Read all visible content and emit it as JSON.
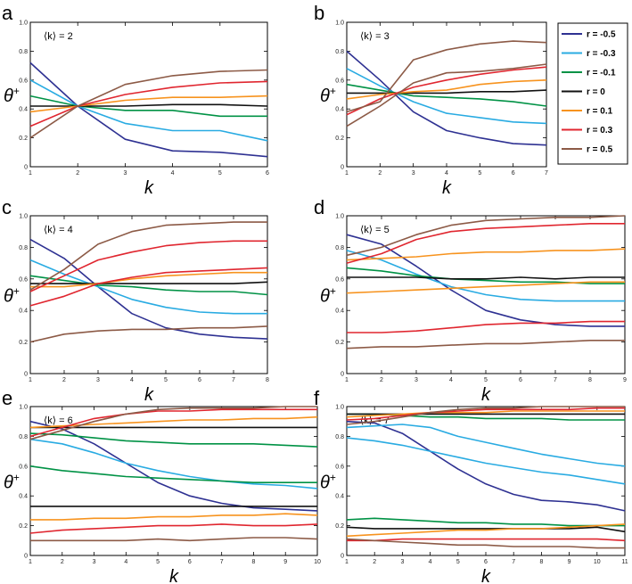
{
  "legend": [
    {
      "label": "r = -0.5",
      "color": "#2e3192"
    },
    {
      "label": "r = -0.3",
      "color": "#29abe2"
    },
    {
      "label": "r = -0.1",
      "color": "#009245"
    },
    {
      "label": "r = 0",
      "color": "#111111"
    },
    {
      "label": "r = 0.1",
      "color": "#f7931e"
    },
    {
      "label": "r = 0.3",
      "color": "#e0262f"
    },
    {
      "label": "r = 0.5",
      "color": "#8c5a46"
    }
  ],
  "chart_data": [
    {
      "type": "line",
      "panel": "a",
      "annotation": "⟨k⟩ = 2",
      "xlabel": "k",
      "ylabel": "θ",
      "ylabel_sup": "+",
      "xlim": [
        1,
        6
      ],
      "ylim": [
        0,
        1
      ],
      "xticks": [
        1,
        2,
        3,
        4,
        5,
        6
      ],
      "yticks": [
        "0",
        "0.2",
        "0.4",
        "0.6",
        "0.8",
        "1.0"
      ],
      "series": [
        {
          "values": [
            0.72,
            0.42,
            0.19,
            0.11,
            0.1,
            0.07
          ],
          "color": "#2e3192"
        },
        {
          "values": [
            0.6,
            0.42,
            0.3,
            0.25,
            0.25,
            0.18
          ],
          "color": "#29abe2"
        },
        {
          "values": [
            0.49,
            0.42,
            0.39,
            0.39,
            0.35,
            0.35
          ],
          "color": "#009245"
        },
        {
          "values": [
            0.42,
            0.42,
            0.42,
            0.43,
            0.43,
            0.42
          ],
          "color": "#111111"
        },
        {
          "values": [
            0.38,
            0.42,
            0.46,
            0.48,
            0.48,
            0.49
          ],
          "color": "#f7931e"
        },
        {
          "values": [
            0.28,
            0.42,
            0.5,
            0.55,
            0.58,
            0.59
          ],
          "color": "#e0262f"
        },
        {
          "values": [
            0.2,
            0.42,
            0.57,
            0.63,
            0.66,
            0.67
          ],
          "color": "#8c5a46"
        }
      ]
    },
    {
      "type": "line",
      "panel": "b",
      "annotation": "⟨k⟩ = 3",
      "xlabel": "k",
      "ylabel": "θ",
      "ylabel_sup": "+",
      "xlim": [
        1,
        7
      ],
      "ylim": [
        0,
        1
      ],
      "xticks": [
        1,
        2,
        3,
        4,
        5,
        6,
        7
      ],
      "yticks": [
        "0",
        "0.2",
        "0.4",
        "0.6",
        "0.8",
        "1.0"
      ],
      "series": [
        {
          "values": [
            0.8,
            0.6,
            0.38,
            0.25,
            0.2,
            0.16,
            0.15
          ],
          "color": "#2e3192"
        },
        {
          "values": [
            0.68,
            0.56,
            0.45,
            0.37,
            0.34,
            0.31,
            0.3
          ],
          "color": "#29abe2"
        },
        {
          "values": [
            0.57,
            0.53,
            0.49,
            0.48,
            0.47,
            0.45,
            0.42
          ],
          "color": "#009245"
        },
        {
          "values": [
            0.51,
            0.51,
            0.51,
            0.51,
            0.52,
            0.52,
            0.53
          ],
          "color": "#111111"
        },
        {
          "values": [
            0.47,
            0.5,
            0.52,
            0.53,
            0.57,
            0.59,
            0.6
          ],
          "color": "#f7931e"
        },
        {
          "values": [
            0.36,
            0.47,
            0.55,
            0.6,
            0.64,
            0.67,
            0.69
          ],
          "color": "#e0262f"
        },
        {
          "values": [
            0.28,
            0.42,
            0.58,
            0.65,
            0.66,
            0.68,
            0.71
          ],
          "color": "#8c5a46"
        },
        {
          "values": [
            0.38,
            0.45,
            0.74,
            0.81,
            0.85,
            0.87,
            0.86
          ],
          "color": "#8c5a46"
        }
      ]
    },
    {
      "type": "line",
      "panel": "c",
      "annotation": "⟨k⟩ = 4",
      "xlabel": "k",
      "ylabel": "θ",
      "ylabel_sup": "+",
      "xlim": [
        1,
        8
      ],
      "ylim": [
        0,
        1
      ],
      "xticks": [
        1,
        2,
        3,
        4,
        5,
        6,
        7,
        8
      ],
      "yticks": [
        "0",
        "0.2",
        "0.4",
        "0.6",
        "0.8",
        "1.0"
      ],
      "series": [
        {
          "values": [
            0.85,
            0.73,
            0.55,
            0.38,
            0.29,
            0.25,
            0.23,
            0.22
          ],
          "color": "#2e3192"
        },
        {
          "values": [
            0.72,
            0.63,
            0.55,
            0.47,
            0.42,
            0.39,
            0.38,
            0.38
          ],
          "color": "#29abe2"
        },
        {
          "values": [
            0.62,
            0.59,
            0.56,
            0.55,
            0.53,
            0.52,
            0.52,
            0.5
          ],
          "color": "#009245"
        },
        {
          "values": [
            0.57,
            0.57,
            0.57,
            0.57,
            0.57,
            0.57,
            0.57,
            0.58
          ],
          "color": "#111111"
        },
        {
          "values": [
            0.55,
            0.55,
            0.57,
            0.6,
            0.62,
            0.63,
            0.64,
            0.64
          ],
          "color": "#f7931e"
        },
        {
          "values": [
            0.43,
            0.49,
            0.57,
            0.61,
            0.64,
            0.65,
            0.66,
            0.67
          ],
          "color": "#e0262f"
        },
        {
          "values": [
            0.52,
            0.62,
            0.72,
            0.77,
            0.81,
            0.83,
            0.84,
            0.84
          ],
          "color": "#e0262f"
        },
        {
          "values": [
            0.53,
            0.66,
            0.82,
            0.9,
            0.94,
            0.95,
            0.96,
            0.96
          ],
          "color": "#8c5a46"
        },
        {
          "values": [
            0.2,
            0.25,
            0.27,
            0.28,
            0.28,
            0.29,
            0.29,
            0.3
          ],
          "color": "#8c5a46"
        }
      ]
    },
    {
      "type": "line",
      "panel": "d",
      "annotation": "⟨k⟩ = 5",
      "xlabel": "k",
      "ylabel": "θ",
      "ylabel_sup": "+",
      "xlim": [
        1,
        9
      ],
      "ylim": [
        0,
        1
      ],
      "xticks": [
        1,
        2,
        3,
        4,
        5,
        6,
        7,
        8,
        9
      ],
      "yticks": [
        "0",
        "0.2",
        "0.4",
        "0.6",
        "0.8",
        "1.0"
      ],
      "series": [
        {
          "values": [
            0.88,
            0.82,
            0.68,
            0.53,
            0.4,
            0.34,
            0.31,
            0.3,
            0.3
          ],
          "color": "#2e3192"
        },
        {
          "values": [
            0.78,
            0.72,
            0.63,
            0.55,
            0.5,
            0.47,
            0.46,
            0.46,
            0.46
          ],
          "color": "#29abe2"
        },
        {
          "values": [
            0.67,
            0.65,
            0.62,
            0.6,
            0.59,
            0.58,
            0.58,
            0.57,
            0.57
          ],
          "color": "#009245"
        },
        {
          "values": [
            0.61,
            0.61,
            0.61,
            0.6,
            0.6,
            0.61,
            0.6,
            0.61,
            0.61
          ],
          "color": "#111111"
        },
        {
          "values": [
            0.51,
            0.52,
            0.53,
            0.54,
            0.55,
            0.56,
            0.57,
            0.58,
            0.58
          ],
          "color": "#f7931e"
        },
        {
          "values": [
            0.72,
            0.73,
            0.74,
            0.76,
            0.77,
            0.77,
            0.78,
            0.78,
            0.79
          ],
          "color": "#f7931e"
        },
        {
          "values": [
            0.26,
            0.26,
            0.27,
            0.29,
            0.31,
            0.32,
            0.32,
            0.33,
            0.33
          ],
          "color": "#e0262f"
        },
        {
          "values": [
            0.7,
            0.76,
            0.85,
            0.9,
            0.92,
            0.93,
            0.94,
            0.95,
            0.95
          ],
          "color": "#e0262f"
        },
        {
          "values": [
            0.75,
            0.8,
            0.88,
            0.94,
            0.97,
            0.98,
            0.99,
            0.99,
            1.0
          ],
          "color": "#8c5a46"
        },
        {
          "values": [
            0.16,
            0.17,
            0.17,
            0.18,
            0.19,
            0.19,
            0.2,
            0.21,
            0.21
          ],
          "color": "#8c5a46"
        }
      ]
    },
    {
      "type": "line",
      "panel": "e",
      "annotation": "⟨k⟩ = 6",
      "xlabel": "k",
      "ylabel": "θ",
      "ylabel_sup": "+",
      "xlim": [
        1,
        10
      ],
      "ylim": [
        0,
        1
      ],
      "xticks": [
        1,
        2,
        3,
        4,
        5,
        6,
        7,
        8,
        9,
        10
      ],
      "yticks": [
        "0",
        "0.2",
        "0.4",
        "0.6",
        "0.8",
        "1.0"
      ],
      "series": [
        {
          "values": [
            0.9,
            0.85,
            0.75,
            0.62,
            0.49,
            0.4,
            0.35,
            0.32,
            0.31,
            0.3
          ],
          "color": "#2e3192"
        },
        {
          "values": [
            0.78,
            0.75,
            0.69,
            0.62,
            0.57,
            0.53,
            0.5,
            0.48,
            0.47,
            0.45
          ],
          "color": "#29abe2"
        },
        {
          "values": [
            0.82,
            0.81,
            0.79,
            0.77,
            0.76,
            0.75,
            0.75,
            0.75,
            0.74,
            0.73
          ],
          "color": "#009245"
        },
        {
          "values": [
            0.6,
            0.57,
            0.55,
            0.53,
            0.52,
            0.51,
            0.5,
            0.49,
            0.49,
            0.49
          ],
          "color": "#009245"
        },
        {
          "values": [
            0.86,
            0.86,
            0.86,
            0.86,
            0.86,
            0.86,
            0.86,
            0.86,
            0.86,
            0.86
          ],
          "color": "#111111"
        },
        {
          "values": [
            0.33,
            0.33,
            0.33,
            0.33,
            0.33,
            0.33,
            0.33,
            0.33,
            0.33,
            0.33
          ],
          "color": "#111111"
        },
        {
          "values": [
            0.86,
            0.87,
            0.88,
            0.89,
            0.9,
            0.91,
            0.91,
            0.92,
            0.92,
            0.93
          ],
          "color": "#f7931e"
        },
        {
          "values": [
            0.24,
            0.24,
            0.25,
            0.25,
            0.26,
            0.26,
            0.27,
            0.27,
            0.28,
            0.27
          ],
          "color": "#f7931e"
        },
        {
          "values": [
            0.8,
            0.86,
            0.92,
            0.95,
            0.97,
            0.97,
            0.98,
            0.98,
            0.98,
            0.98
          ],
          "color": "#e0262f"
        },
        {
          "values": [
            0.15,
            0.17,
            0.18,
            0.19,
            0.2,
            0.2,
            0.21,
            0.2,
            0.2,
            0.21
          ],
          "color": "#e0262f"
        },
        {
          "values": [
            0.78,
            0.84,
            0.9,
            0.95,
            0.98,
            0.99,
            0.99,
            0.99,
            1.0,
            1.0
          ],
          "color": "#8c5a46"
        },
        {
          "values": [
            0.1,
            0.1,
            0.1,
            0.1,
            0.11,
            0.1,
            0.11,
            0.12,
            0.12,
            0.11
          ],
          "color": "#8c5a46"
        }
      ]
    },
    {
      "type": "line",
      "panel": "f",
      "annotation": "⟨k⟩ = 7",
      "xlabel": "k",
      "ylabel": "θ",
      "ylabel_sup": "+",
      "xlim": [
        1,
        11
      ],
      "ylim": [
        0,
        1
      ],
      "xticks": [
        1,
        2,
        3,
        4,
        5,
        6,
        7,
        8,
        9,
        10,
        11
      ],
      "yticks": [
        "0",
        "0.2",
        "0.4",
        "0.6",
        "0.8",
        "1.0"
      ],
      "series": [
        {
          "values": [
            0.9,
            0.89,
            0.82,
            0.7,
            0.58,
            0.48,
            0.41,
            0.37,
            0.36,
            0.34,
            0.3
          ],
          "color": "#2e3192"
        },
        {
          "values": [
            0.79,
            0.77,
            0.74,
            0.7,
            0.66,
            0.62,
            0.59,
            0.56,
            0.54,
            0.51,
            0.48
          ],
          "color": "#29abe2"
        },
        {
          "values": [
            0.86,
            0.87,
            0.88,
            0.86,
            0.8,
            0.76,
            0.72,
            0.68,
            0.65,
            0.62,
            0.6
          ],
          "color": "#29abe2"
        },
        {
          "values": [
            0.95,
            0.95,
            0.94,
            0.93,
            0.93,
            0.92,
            0.92,
            0.92,
            0.91,
            0.91,
            0.91
          ],
          "color": "#009245"
        },
        {
          "values": [
            0.24,
            0.25,
            0.24,
            0.23,
            0.22,
            0.22,
            0.21,
            0.21,
            0.2,
            0.2,
            0.2
          ],
          "color": "#009245"
        },
        {
          "values": [
            0.95,
            0.95,
            0.95,
            0.95,
            0.95,
            0.95,
            0.95,
            0.95,
            0.95,
            0.95,
            0.95
          ],
          "color": "#111111"
        },
        {
          "values": [
            0.19,
            0.18,
            0.18,
            0.18,
            0.18,
            0.18,
            0.18,
            0.18,
            0.18,
            0.19,
            0.16
          ],
          "color": "#111111"
        },
        {
          "values": [
            0.93,
            0.94,
            0.95,
            0.96,
            0.96,
            0.96,
            0.97,
            0.97,
            0.97,
            0.97,
            0.97
          ],
          "color": "#f7931e"
        },
        {
          "values": [
            0.13,
            0.14,
            0.15,
            0.16,
            0.17,
            0.17,
            0.18,
            0.18,
            0.19,
            0.2,
            0.21
          ],
          "color": "#f7931e"
        },
        {
          "values": [
            0.91,
            0.92,
            0.94,
            0.96,
            0.97,
            0.98,
            0.98,
            0.98,
            0.98,
            0.99,
            0.99
          ],
          "color": "#e0262f"
        },
        {
          "values": [
            0.1,
            0.1,
            0.11,
            0.11,
            0.11,
            0.11,
            0.11,
            0.11,
            0.11,
            0.11,
            0.1
          ],
          "color": "#e0262f"
        },
        {
          "values": [
            0.88,
            0.9,
            0.93,
            0.96,
            0.98,
            0.99,
            0.99,
            1.0,
            1.0,
            1.0,
            1.0
          ],
          "color": "#8c5a46"
        },
        {
          "values": [
            0.11,
            0.1,
            0.09,
            0.08,
            0.07,
            0.07,
            0.06,
            0.06,
            0.06,
            0.05,
            0.05
          ],
          "color": "#8c5a46"
        }
      ]
    }
  ]
}
